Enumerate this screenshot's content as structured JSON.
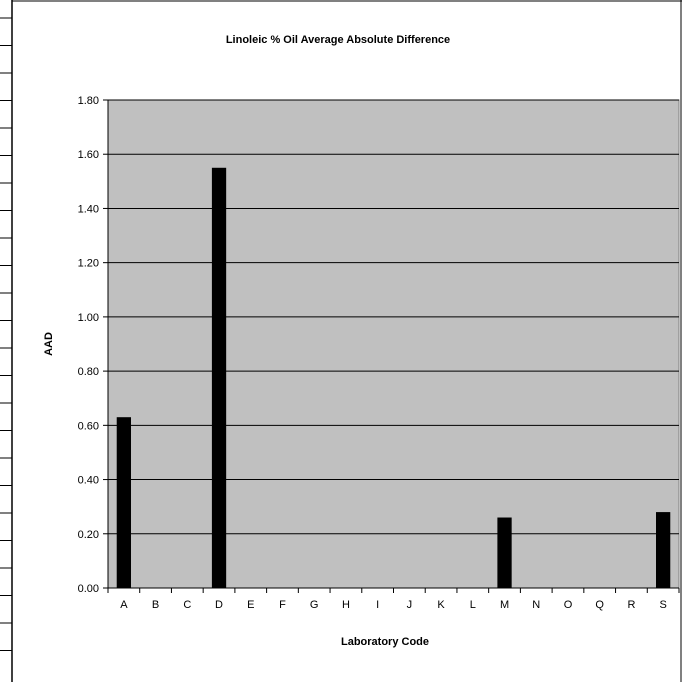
{
  "chart_data": {
    "type": "bar",
    "title": "Linoleic % Oil Average Absolute Difference",
    "xlabel": "Laboratory Code",
    "ylabel": "AAD",
    "categories": [
      "A",
      "B",
      "C",
      "D",
      "E",
      "F",
      "G",
      "H",
      "I",
      "J",
      "K",
      "L",
      "M",
      "N",
      "O",
      "Q",
      "R",
      "S"
    ],
    "values": [
      0.63,
      null,
      null,
      1.55,
      null,
      null,
      null,
      null,
      null,
      null,
      null,
      null,
      0.26,
      null,
      null,
      null,
      null,
      0.28
    ],
    "ylim": [
      0,
      1.8
    ],
    "yticks": [
      "0.00",
      "0.20",
      "0.40",
      "0.60",
      "0.80",
      "1.00",
      "1.20",
      "1.40",
      "1.60",
      "1.80"
    ],
    "grid": true,
    "legend": "none",
    "colors": {
      "plot_background": "#c0c0c0",
      "bar": "#000000",
      "gridline": "#000000"
    }
  }
}
